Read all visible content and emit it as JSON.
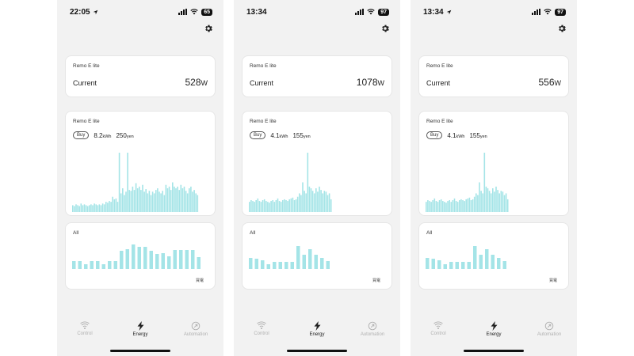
{
  "accent_color": "#a4e4e7",
  "screens": [
    {
      "time": "22:05",
      "location_arrow": true,
      "battery": "65",
      "current": {
        "device": "Remo E lite",
        "label": "Current",
        "value": "528",
        "unit": "W"
      },
      "energy": {
        "device": "Remo E lite",
        "buy_label": "Buy",
        "kwh": "8.2",
        "kwh_unit": "kWh",
        "yen": "250",
        "yen_unit": "yen"
      },
      "chart_data": [
        {
          "type": "bar",
          "title": "",
          "values": [
            8,
            7,
            9,
            8,
            7,
            10,
            8,
            9,
            8,
            7,
            8,
            9,
            8,
            10,
            9,
            8,
            9,
            8,
            10,
            9,
            12,
            11,
            13,
            12,
            18,
            15,
            16,
            12,
            70,
            22,
            28,
            20,
            24,
            70,
            26,
            25,
            30,
            26,
            34,
            28,
            30,
            26,
            32,
            24,
            27,
            22,
            25,
            20,
            24,
            22,
            26,
            28,
            24,
            22,
            25,
            20,
            32,
            28,
            30,
            26,
            35,
            30,
            28,
            30,
            26,
            32,
            28,
            30,
            25,
            22,
            28,
            30,
            24,
            26,
            22,
            20
          ]
        },
        {
          "type": "bar",
          "title": "All",
          "legend": "買電",
          "values": [
            10,
            10,
            6,
            10,
            10,
            6,
            10,
            10,
            23,
            25,
            31,
            28,
            28,
            23,
            19,
            20,
            16,
            24,
            24,
            24,
            24,
            15
          ]
        }
      ]
    },
    {
      "time": "13:34",
      "location_arrow": false,
      "battery": "97",
      "current": {
        "device": "Remo E lite",
        "label": "Current",
        "value": "1078",
        "unit": "W"
      },
      "energy": {
        "device": "Remo E lite",
        "buy_label": "Buy",
        "kwh": "4.1",
        "kwh_unit": "kWh",
        "yen": "155",
        "yen_unit": "yen"
      },
      "chart_data": [
        {
          "type": "bar",
          "title": "",
          "values": [
            12,
            14,
            13,
            12,
            14,
            16,
            13,
            12,
            14,
            15,
            13,
            12,
            11,
            13,
            14,
            12,
            14,
            16,
            13,
            12,
            14,
            15,
            14,
            13,
            15,
            16,
            17,
            14,
            15,
            18,
            22,
            20,
            35,
            25,
            22,
            70,
            30,
            28,
            25,
            22,
            28,
            24,
            30,
            26,
            22,
            25,
            24,
            20,
            22,
            15
          ]
        },
        {
          "type": "bar",
          "title": "All",
          "legend": "買電",
          "values": [
            14,
            13,
            11,
            6,
            9,
            9,
            9,
            9,
            29,
            18,
            25,
            18,
            14,
            10
          ]
        }
      ]
    },
    {
      "time": "13:34",
      "location_arrow": true,
      "battery": "97",
      "current": {
        "device": "Remo E lite",
        "label": "Current",
        "value": "556",
        "unit": "W"
      },
      "energy": {
        "device": "Remo E lite",
        "buy_label": "Buy",
        "kwh": "4.1",
        "kwh_unit": "kWh",
        "yen": "155",
        "yen_unit": "yen"
      },
      "chart_data": [
        {
          "type": "bar",
          "title": "",
          "values": [
            12,
            14,
            13,
            12,
            14,
            16,
            13,
            12,
            14,
            15,
            13,
            12,
            11,
            13,
            14,
            12,
            14,
            16,
            13,
            12,
            14,
            15,
            14,
            13,
            15,
            16,
            17,
            14,
            15,
            18,
            22,
            20,
            35,
            25,
            22,
            70,
            30,
            28,
            25,
            22,
            28,
            24,
            30,
            26,
            22,
            25,
            24,
            20,
            22,
            15
          ]
        },
        {
          "type": "bar",
          "title": "All",
          "legend": "買電",
          "values": [
            14,
            13,
            11,
            6,
            9,
            9,
            9,
            9,
            29,
            18,
            25,
            18,
            14,
            10
          ]
        }
      ]
    }
  ],
  "tabs": [
    {
      "label": "Control",
      "icon": "wifi-icon"
    },
    {
      "label": "Energy",
      "icon": "bolt-icon"
    },
    {
      "label": "Automation",
      "icon": "automation-icon"
    }
  ],
  "active_tab": 1
}
